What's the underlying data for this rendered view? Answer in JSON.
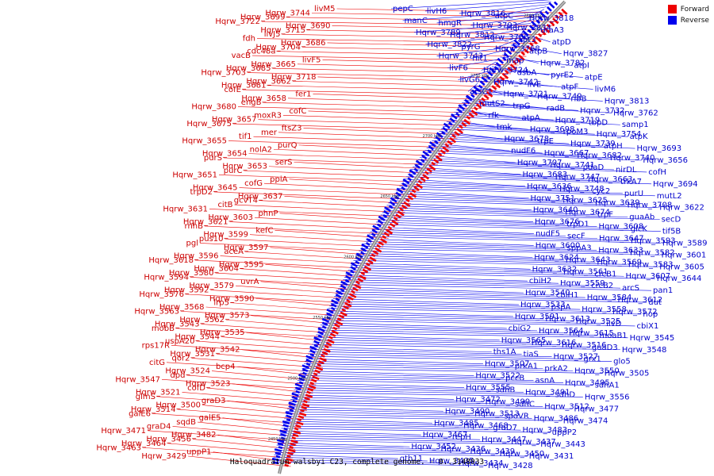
{
  "legend": {
    "forward": {
      "label": "Forward",
      "color": "#ee0000"
    },
    "reverse": {
      "label": "Reverse",
      "color": "#0000ee"
    }
  },
  "caption": "Haloquadratum walsbyi C23, complete genome. - 0..3148033",
  "ruler": [
    "2450 kbp",
    "2500 kbp",
    "2550 kbp",
    "2600 kbp",
    "2650 kbp",
    "2700 kbp",
    "2750 kbp",
    "2800 kbp"
  ],
  "forward_labels": [
    "livM5",
    "Hqrw_3744",
    "Hqrw_3699",
    "Hqrw_3722",
    "Hqrw_3690",
    "Hqrw_3715",
    "livJ5",
    "fdh",
    "Hqrw_3686",
    "Hqrw_3704",
    "cdc48a",
    "vacB",
    "livF5",
    "Hqrw_3665",
    "Hqrw_3685",
    "Hqrw_3703",
    "Hqrw_3718",
    "Hqrw_3662",
    "Hqrw_3681",
    "cofE",
    "fer1",
    "Hqrw_3658",
    "engB",
    "Hqrw_3680",
    "cofC",
    "moxR3",
    "Hqrw_3657",
    "Hqrw_3675",
    "ftsZ3",
    "mer",
    "tif1",
    "Hqrw_3655",
    "purQ",
    "nolA2",
    "Hqrw_3654",
    "purS",
    "serS",
    "Hqrw_3653",
    "purC",
    "Hqrw_3651",
    "ppiA",
    "cofG",
    "Hqrw_3645",
    "trpD2",
    "Hqrw_3637",
    "gcvT4",
    "citB",
    "Hqrw_3631",
    "phnP",
    "Hqrw_3603",
    "Hqrw_3621",
    "rnhB",
    "kefC",
    "Hqrw_3599",
    "pus10",
    "pgl",
    "Hqrw_3597",
    "aceA",
    "Hqrw_3596",
    "Hqrw_3618",
    "Hqrw_3595",
    "Hqrw_3604",
    "Hqrw_3580",
    "Hqrw_3594",
    "uvrA",
    "Hqrw_3579",
    "Hqrw_3592",
    "Hqrw_3576",
    "Hqrw_3590",
    "lrp5",
    "Hqrw_3568",
    "Hqrw_3563",
    "Hqrw_3573",
    "Hqrw_3562",
    "Hqrw_3543",
    "mobB",
    "Hqrw_3535",
    "Hqrw_3544",
    "uspA20",
    "rps17R",
    "Hqrw_3542",
    "Hqrw_3531",
    "qor2",
    "citG",
    "bcp4",
    "Hqrw_3524",
    "dpd",
    "Hqrw_3547",
    "Hqrw_3523",
    "cofD",
    "Hqrw_3521",
    "glmS",
    "graD3",
    "Hqrw_3500",
    "Hqrw_3514",
    "galE6",
    "galE5",
    "sqdB",
    "graD4",
    "Hqrw_3471",
    "Hqrw_3482",
    "Hqrw_3456",
    "Hqrw_3464",
    "Hqrw_3463",
    "uppP1",
    "Hqrw_3429"
  ],
  "reverse_labels": [
    "pepC",
    "livH6",
    "Hqrw_3816",
    "atpC",
    "Hqrw_3818",
    "manC",
    "hmgR",
    "Hqrw_3793",
    "Hqrw_3834",
    "uraA3",
    "Hqrw_3789",
    "Hqrw_3812",
    "Hqrw_3766",
    "apt3",
    "atpD",
    "Hqrw_3822",
    "pyrG",
    "Hqrw_3768",
    "atpB",
    "Hqrw_3827",
    "Hqrw_3743",
    "hit1",
    "map",
    "Hqrw_3782",
    "atpI",
    "livF6",
    "Hqrw_3724",
    "dsbA",
    "pyrE2",
    "atpE",
    "livG6",
    "Hqrw_3742",
    "livE",
    "atpF",
    "livM6",
    "arsC1",
    "Hqrw_3721",
    "Hqrw_3749",
    "ribB",
    "Hqrw_3813",
    "mutS2",
    "trpG",
    "radB",
    "Hqrw_3732",
    "Hqrw_3762",
    "rfk",
    "atpA",
    "Hqrw_3719",
    "tbpD",
    "samp1",
    "tmk",
    "Hqrw_3698",
    "rpoM3",
    "Hqrw_3754",
    "atpK",
    "Hqrw_3678",
    "trpE",
    "Hqrw_3739",
    "atpH",
    "Hqrw_3693",
    "nudF6",
    "Hqrw_3667",
    "Hqrw_3682",
    "Hqrw_3740",
    "Hqrw_3656",
    "Hqrw_3707",
    "Hqrw_3741",
    "pdaD",
    "nirDL",
    "cofH",
    "Hqrw_3683",
    "Hqrw_3747",
    "Hqrw_3663",
    "trkA7",
    "Hqrw_3694",
    "Hqrw_3636",
    "Hqrw_3748",
    "cyc2",
    "purU",
    "mutL2",
    "Hqrw_3751",
    "Hqrw_3625",
    "Hqrw_3639",
    "Hqrw_3708",
    "Hqrw_3622",
    "Hqrw_3640",
    "Hqrw_3674",
    "trpF",
    "guaAb",
    "secD",
    "Hqrw_3676",
    "trpD1",
    "Hqrw_3608",
    "glcK",
    "tif5B",
    "nudF5",
    "secF",
    "Hqrw_3647",
    "Hqrw_3593",
    "Hqrw_3589",
    "Hqrw_3600",
    "sppA3",
    "Hqrw_3633",
    "Hqrw_3582",
    "Hqrw_3601",
    "Hqrw_3624",
    "Hqrw_3643",
    "Hqrw_3569",
    "Hqrw_3583",
    "Hqrw_3605",
    "Hqrw_3632",
    "Hqrw_3561",
    "crcB1",
    "Hqrw_3607",
    "Hqrw_3644",
    "cbiH2",
    "Hqrw_3559",
    "crcB2",
    "arcS",
    "pan1",
    "Hqrw_3540",
    "cbiH1",
    "Hqrw_3584",
    "Hqrw_3612",
    "dut",
    "Hqrw_3533",
    "pspA",
    "Hqrw_3558",
    "Hqrw_3572",
    "hop",
    "Hqrw_3591",
    "Hqrw_3613",
    "Hqrw_3525",
    "ilvD",
    "cbiX1",
    "cbiG2",
    "Hqrw_3564",
    "Hqrw_3615",
    "moaB1",
    "Hqrw_3545",
    "Hqrw_3565",
    "Hqrw_3616",
    "Hqrw_3516",
    "guaD3",
    "Hqrw_3548",
    "ths1A",
    "tiaS",
    "Hqrw_3527",
    "grx1",
    "glo5",
    "Hqrw_3507",
    "prkA1",
    "prkA2",
    "Hqrw_3550",
    "Hqrw_3505",
    "Hqrw_3522",
    "pccB",
    "asnA",
    "Hqrw_3495",
    "sdhA1",
    "Hqrw_3555",
    "sdhB",
    "Hqrw_3491",
    "sdhD",
    "Hqrw_3556",
    "Hqrw_3472",
    "Hqrw_3499",
    "sdhC",
    "Hqrw_3512",
    "Hqrw_3477",
    "Hqrw_3490",
    "Hqrw_3513",
    "spoVR",
    "Hqrw_3486",
    "Hqrw_3474",
    "Hqrw_3485",
    "Hqrw_3468",
    "graD7",
    "Hqrw_3483",
    "uppP2",
    "Hqrw_3467",
    "repH",
    "Hqrw_3447",
    "Hqrw_3437",
    "Hqrw_3443",
    "Hqrw_3452",
    "Hqrw_3436",
    "Hqrw_3439",
    "Hqrw_3450",
    "Hqrw_3431",
    "gth11",
    "Hqrw_3435",
    "Hqrw_3434",
    "Hqrw_3428"
  ]
}
